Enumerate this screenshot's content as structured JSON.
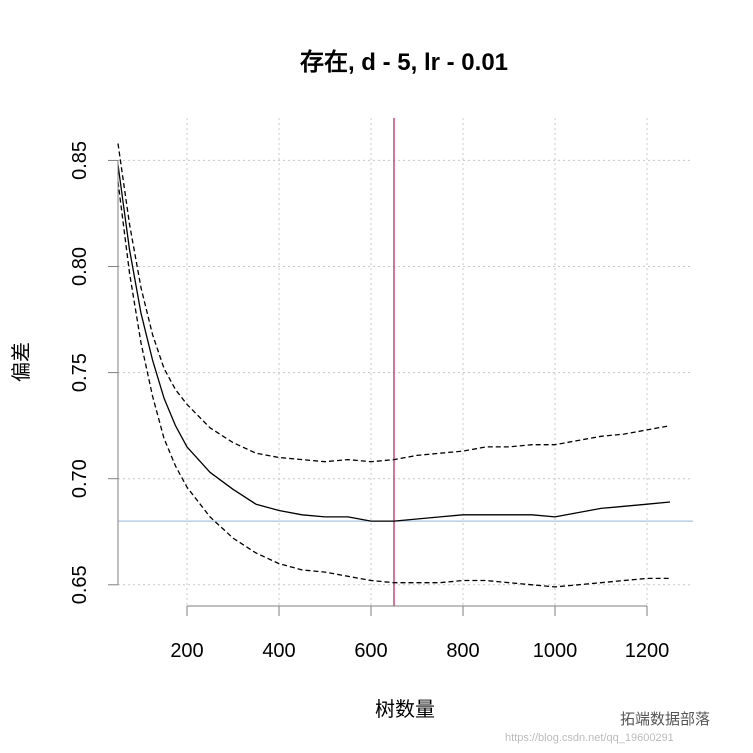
{
  "chart_data": {
    "type": "line",
    "title": "存在, d - 5, lr - 0.01",
    "xlabel": "树数量",
    "ylabel": "偏差",
    "xlim": [
      50,
      1300
    ],
    "ylim": [
      0.64,
      0.87
    ],
    "x_ticks": [
      200,
      400,
      600,
      800,
      1000,
      1200
    ],
    "y_ticks": [
      0.65,
      0.7,
      0.75,
      0.8,
      0.85
    ],
    "x_tick_labels": [
      "200",
      "400",
      "600",
      "800",
      "1000",
      "1200"
    ],
    "y_tick_labels": [
      "0.65",
      "0.70",
      "0.75",
      "0.80",
      "0.85"
    ],
    "grid": true,
    "reference_lines": {
      "vertical_x": 650,
      "vertical_color": "#c2185b",
      "horizontal_y": 0.68,
      "horizontal_color": "#aac4dc"
    },
    "series": [
      {
        "style": "solid",
        "color": "#000000",
        "x": [
          50,
          75,
          100,
          125,
          150,
          175,
          200,
          250,
          300,
          350,
          400,
          450,
          500,
          550,
          600,
          650,
          700,
          750,
          800,
          850,
          900,
          950,
          1000,
          1050,
          1100,
          1150,
          1200,
          1250
        ],
        "y": [
          0.848,
          0.808,
          0.778,
          0.756,
          0.738,
          0.725,
          0.715,
          0.703,
          0.695,
          0.688,
          0.685,
          0.683,
          0.682,
          0.682,
          0.68,
          0.68,
          0.681,
          0.682,
          0.683,
          0.683,
          0.683,
          0.683,
          0.682,
          0.684,
          0.686,
          0.687,
          0.688,
          0.689
        ]
      },
      {
        "style": "dashed",
        "color": "#000000",
        "x": [
          50,
          75,
          100,
          125,
          150,
          175,
          200,
          250,
          300,
          350,
          400,
          450,
          500,
          550,
          600,
          650,
          700,
          750,
          800,
          850,
          900,
          950,
          1000,
          1050,
          1100,
          1150,
          1200,
          1250
        ],
        "y": [
          0.858,
          0.82,
          0.79,
          0.768,
          0.752,
          0.742,
          0.735,
          0.724,
          0.717,
          0.712,
          0.71,
          0.709,
          0.708,
          0.709,
          0.708,
          0.709,
          0.711,
          0.712,
          0.713,
          0.715,
          0.715,
          0.716,
          0.716,
          0.718,
          0.72,
          0.721,
          0.723,
          0.725
        ]
      },
      {
        "style": "dashed",
        "color": "#000000",
        "x": [
          50,
          75,
          100,
          125,
          150,
          175,
          200,
          250,
          300,
          350,
          400,
          450,
          500,
          550,
          600,
          650,
          700,
          750,
          800,
          850,
          900,
          950,
          1000,
          1050,
          1100,
          1150,
          1200,
          1250
        ],
        "y": [
          0.84,
          0.797,
          0.764,
          0.739,
          0.719,
          0.706,
          0.696,
          0.682,
          0.672,
          0.665,
          0.66,
          0.657,
          0.656,
          0.654,
          0.652,
          0.651,
          0.651,
          0.651,
          0.652,
          0.652,
          0.651,
          0.65,
          0.649,
          0.65,
          0.651,
          0.652,
          0.653,
          0.653
        ]
      }
    ]
  },
  "watermark": {
    "text": "拓端数据部落",
    "url": "https://blog.csdn.net/qq_19600291"
  }
}
